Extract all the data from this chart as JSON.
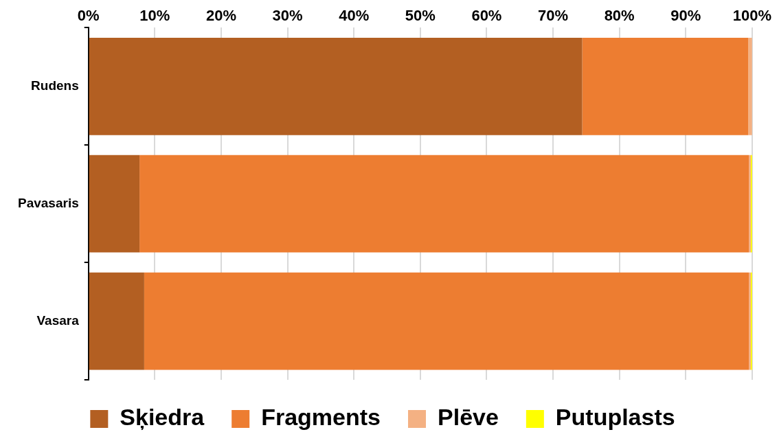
{
  "chart_data": {
    "type": "bar",
    "orientation": "horizontal",
    "stacked": true,
    "categories": [
      "Rudens",
      "Pavasaris",
      "Vasara"
    ],
    "series": [
      {
        "name": "Sķiedra",
        "color": "#b35f22",
        "values": [
          74.4,
          7.7,
          8.4
        ]
      },
      {
        "name": "Fragments",
        "color": "#ed7d31",
        "values": [
          25.0,
          91.8,
          91.1
        ]
      },
      {
        "name": "Plēve",
        "color": "#f4b183",
        "values": [
          0.6,
          0.3,
          0.3
        ]
      },
      {
        "name": "Putuplasts",
        "color": "#ffff00",
        "values": [
          0,
          0.2,
          0.2
        ]
      }
    ],
    "xlim": [
      0,
      100
    ],
    "xticks": [
      {
        "value": 0,
        "label": "0%"
      },
      {
        "value": 10,
        "label": "10%"
      },
      {
        "value": 20,
        "label": "20%"
      },
      {
        "value": 30,
        "label": "30%"
      },
      {
        "value": 40,
        "label": "40%"
      },
      {
        "value": 50,
        "label": "50%"
      },
      {
        "value": 60,
        "label": "60%"
      },
      {
        "value": 70,
        "label": "70%"
      },
      {
        "value": 80,
        "label": "80%"
      },
      {
        "value": 90,
        "label": "90%"
      },
      {
        "value": 100,
        "label": "100%"
      }
    ],
    "grid": "x",
    "legend": "bottom"
  }
}
